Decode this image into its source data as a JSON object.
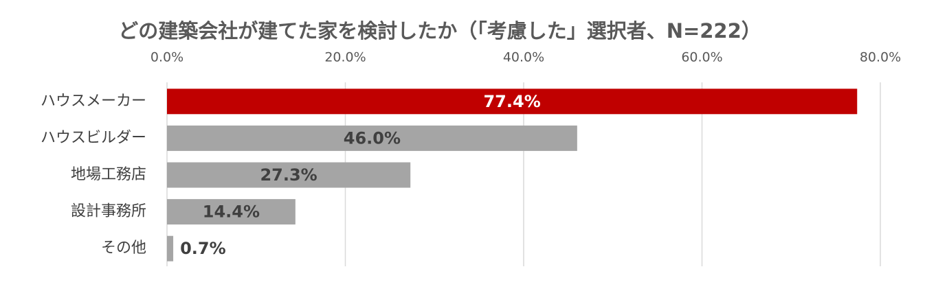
{
  "chart_data": {
    "type": "hbar",
    "title": "どの建築会社が建てた家を検討したか（「考慮した」選択者、N=222）",
    "categories": [
      "ハウスメーカー",
      "ハウスビルダー",
      "地場工務店",
      "設計事務所",
      "その他"
    ],
    "values": [
      77.4,
      46.0,
      27.3,
      14.4,
      0.7
    ],
    "value_labels": [
      "77.4%",
      "46.0%",
      "27.3%",
      "14.4%",
      "0.7%"
    ],
    "colors": [
      "#c00000",
      "#a5a5a5",
      "#a5a5a5",
      "#a5a5a5",
      "#a5a5a5"
    ],
    "xlim": [
      0,
      80
    ],
    "xticks": [
      {
        "value": 0,
        "label": "0.0%"
      },
      {
        "value": 20,
        "label": "20.0%"
      },
      {
        "value": 40,
        "label": "40.0%"
      },
      {
        "value": 60,
        "label": "60.0%"
      },
      {
        "value": 80,
        "label": "80.0%"
      }
    ],
    "grid": true
  }
}
